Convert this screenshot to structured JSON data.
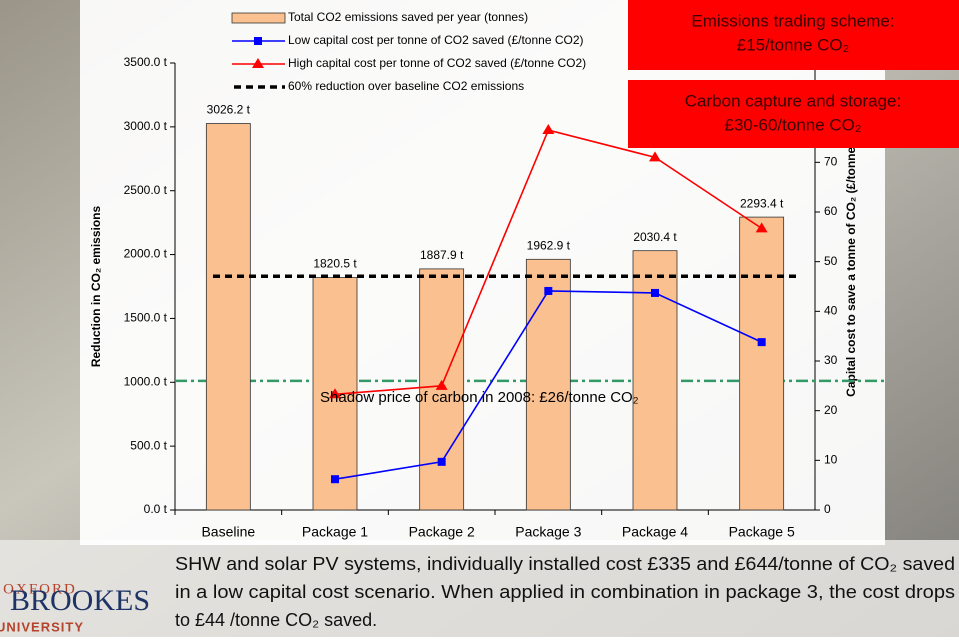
{
  "chart_data": {
    "type": "bar",
    "categories": [
      "Baseline",
      "Package 1",
      "Package 2",
      "Package 3",
      "Package 4",
      "Package 5"
    ],
    "series": [
      {
        "name": "Total CO2 emissions saved per year (tonnes)",
        "type": "bar",
        "color": "#fac090",
        "values": [
          3026.2,
          1820.5,
          1887.9,
          1962.9,
          2030.4,
          2293.4
        ],
        "value_labels": [
          "3026.2 t",
          "1820.5 t",
          "1887.9 t",
          "1962.9 t",
          "2030.4 t",
          "2293.4 t"
        ]
      },
      {
        "name": "Low capital cost per tonne of CO2 saved (£/tonne CO2)",
        "type": "line",
        "axis": "y2",
        "color": "#0000ff",
        "marker": "square",
        "values": [
          null,
          6.2,
          9.7,
          44.1,
          43.7,
          33.8
        ]
      },
      {
        "name": "High capital cost per tonne of CO2 saved (£/tonne CO2)",
        "type": "line",
        "axis": "y2",
        "color": "#ff0000",
        "marker": "triangle",
        "values": [
          null,
          23.3,
          25,
          76.5,
          71,
          56.7
        ]
      }
    ],
    "reference_lines": [
      {
        "name": "60% reduction over baseline CO2 emissions",
        "value": 1830,
        "color": "#000000"
      },
      {
        "label": "Shadow price of carbon in 2008: £26/tonne CO₂",
        "value": 26,
        "axis": "y2",
        "color": "#339966"
      }
    ],
    "y_label": "Reduction in CO₂ emissions",
    "y2_label": "Capital cost to save a tonne of CO₂ (£/tonne CO₂)",
    "ylim": [
      0,
      3500
    ],
    "yticks": [
      {
        "value": 0,
        "label": "0.0 t"
      },
      {
        "value": 500,
        "label": "500.0 t"
      },
      {
        "value": 1000,
        "label": "1000.0 t"
      },
      {
        "value": 1500,
        "label": "1500.0 t"
      },
      {
        "value": 2000,
        "label": "2000.0 t"
      },
      {
        "value": 2500,
        "label": "2500.0 t"
      },
      {
        "value": 3000,
        "label": "3000.0 t"
      },
      {
        "value": 3500,
        "label": "3500.0 t"
      }
    ],
    "y2lim": [
      0,
      90
    ],
    "y2ticks": [
      0,
      10,
      20,
      30,
      40,
      50,
      60,
      70
    ],
    "callouts": [
      {
        "lines": [
          "Emissions trading scheme:",
          "£15/tonne CO₂"
        ],
        "color": "#ff0000"
      },
      {
        "lines": [
          "Carbon capture and storage:",
          "£30-60/tonne CO₂"
        ],
        "color": "#ff0000"
      }
    ]
  },
  "slide": {
    "body_lines": [
      "SHW and solar PV systems, individually installed cost £335 and £644/tonne of CO₂ saved",
      "in a low capital cost scenario. When applied in combination in package 3, the cost drops",
      "to £44 /tonne CO₂ saved."
    ],
    "logo": {
      "top": "OXFORD",
      "middle": "BROOKES",
      "bottom": "UNIVERSITY"
    }
  }
}
